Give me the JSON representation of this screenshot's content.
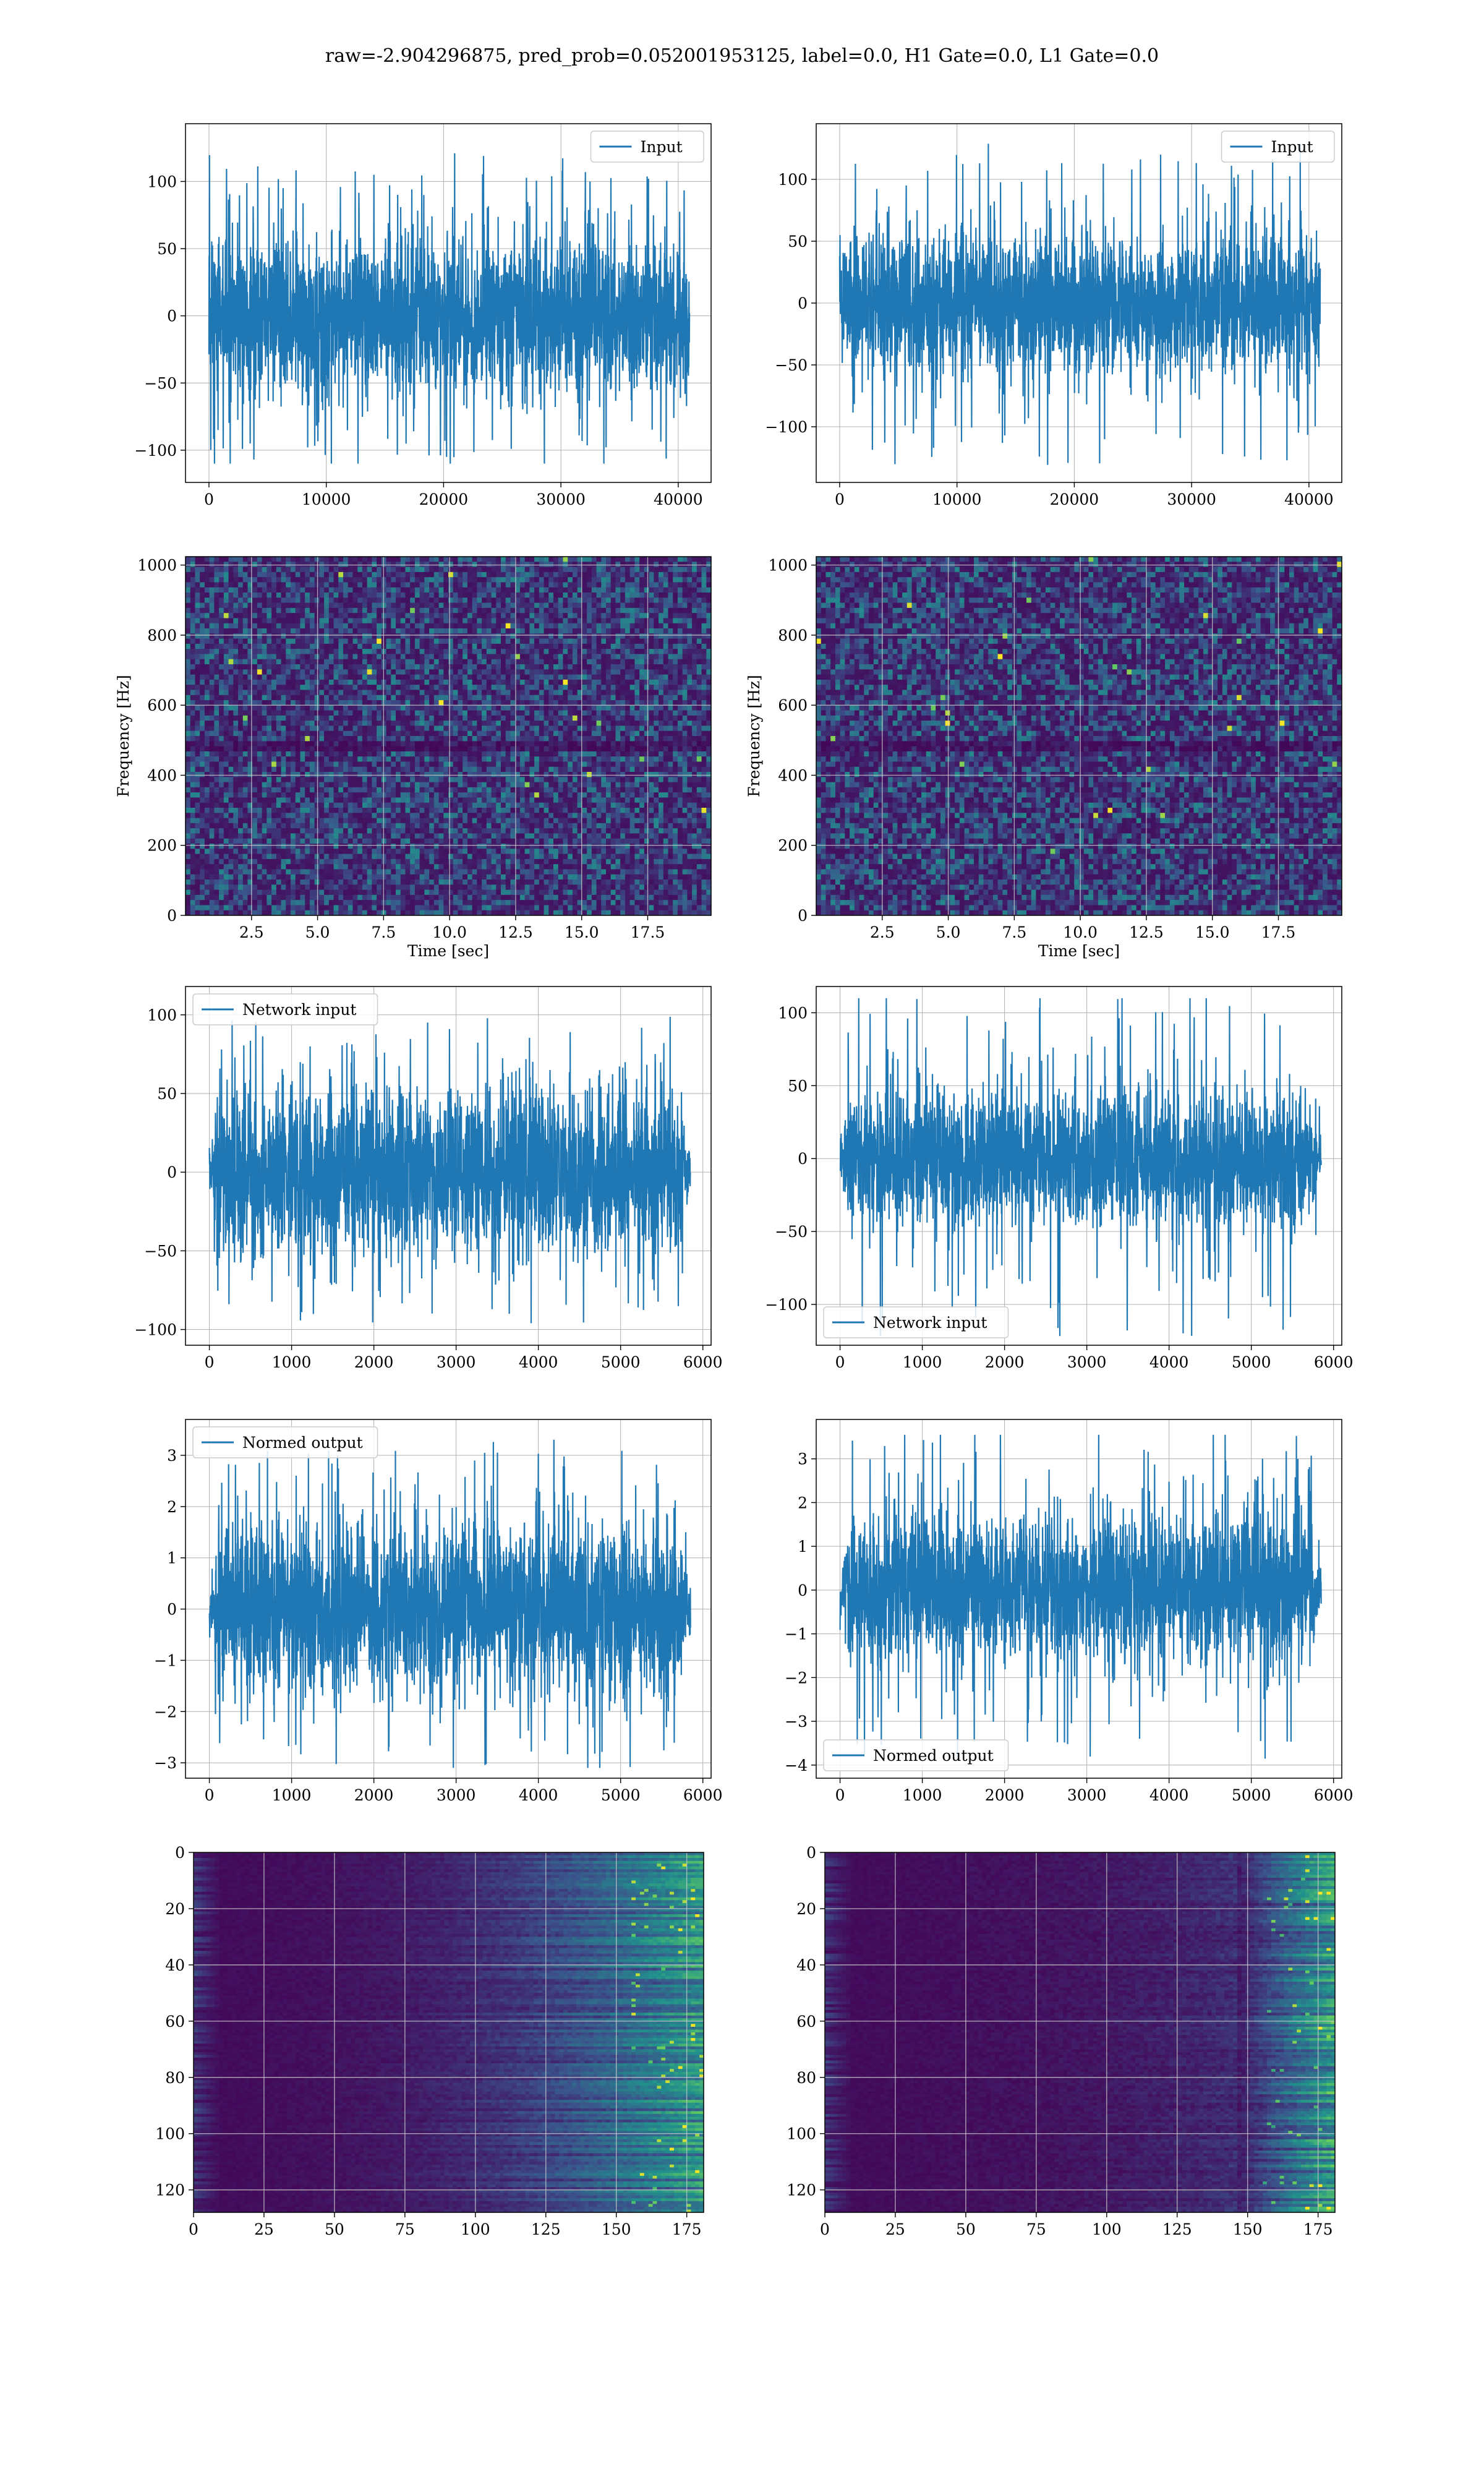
{
  "figure_title": "raw=-2.904296875, pred_prob=0.052001953125, label=0.0, H1 Gate=0.0, L1 Gate=0.0",
  "colors": {
    "series": "#1f77b4",
    "grid": "#b0b0b0",
    "viridis": [
      "#440154",
      "#3b528b",
      "#21918c",
      "#5ec962",
      "#fde725"
    ]
  },
  "chart_data": [
    {
      "id": "h1-input",
      "type": "line",
      "legend": "Input",
      "legend_loc": "upper right",
      "xlim": [
        -2000,
        42800
      ],
      "ylim": [
        -124,
        143
      ],
      "xticks": [
        {
          "v": 0,
          "t": "0"
        },
        {
          "v": 10000,
          "t": "10000"
        },
        {
          "v": 20000,
          "t": "20000"
        },
        {
          "v": 30000,
          "t": "30000"
        },
        {
          "v": 40000,
          "t": "40000"
        }
      ],
      "yticks": [
        {
          "v": -100,
          "t": "−100"
        },
        {
          "v": -50,
          "t": "−50"
        },
        {
          "v": 0,
          "t": "0"
        },
        {
          "v": 50,
          "t": "50"
        },
        {
          "v": 100,
          "t": "100"
        }
      ],
      "x_start": 0,
      "x_end": 40960,
      "amp": 28,
      "peak_max": 122,
      "peak_min": -110,
      "taper": false,
      "grid": true
    },
    {
      "id": "l1-input",
      "type": "line",
      "legend": "Input",
      "legend_loc": "upper right",
      "xlim": [
        -2000,
        42800
      ],
      "ylim": [
        -145,
        145
      ],
      "xticks": [
        {
          "v": 0,
          "t": "0"
        },
        {
          "v": 10000,
          "t": "10000"
        },
        {
          "v": 20000,
          "t": "20000"
        },
        {
          "v": 30000,
          "t": "30000"
        },
        {
          "v": 40000,
          "t": "40000"
        }
      ],
      "yticks": [
        {
          "v": -100,
          "t": "−100"
        },
        {
          "v": -50,
          "t": "−50"
        },
        {
          "v": 0,
          "t": "0"
        },
        {
          "v": 50,
          "t": "50"
        },
        {
          "v": 100,
          "t": "100"
        }
      ],
      "x_start": 0,
      "x_end": 40960,
      "amp": 27,
      "peak_max": 130,
      "peak_min": -132,
      "taper": false,
      "grid": true
    },
    {
      "id": "h1-spectrogram",
      "type": "heatmap",
      "xlabel": "Time [sec]",
      "ylabel": "Frequency [Hz]",
      "xlim": [
        0,
        19.9
      ],
      "ylim": [
        0,
        1024
      ],
      "xticks": [
        {
          "v": 2.5,
          "t": "2.5"
        },
        {
          "v": 5,
          "t": "5.0"
        },
        {
          "v": 7.5,
          "t": "7.5"
        },
        {
          "v": 10,
          "t": "10.0"
        },
        {
          "v": 12.5,
          "t": "12.5"
        },
        {
          "v": 15,
          "t": "15.0"
        },
        {
          "v": 17.5,
          "t": "17.5"
        }
      ],
      "yticks": [
        {
          "v": 0,
          "t": "0"
        },
        {
          "v": 200,
          "t": "200"
        },
        {
          "v": 400,
          "t": "400"
        },
        {
          "v": 600,
          "t": "600"
        },
        {
          "v": 800,
          "t": "800"
        },
        {
          "v": 1000,
          "t": "1000"
        }
      ],
      "grid": true,
      "style": "noise"
    },
    {
      "id": "l1-spectrogram",
      "type": "heatmap",
      "xlabel": "Time [sec]",
      "ylabel": "Frequency [Hz]",
      "xlim": [
        0,
        19.9
      ],
      "ylim": [
        0,
        1024
      ],
      "xticks": [
        {
          "v": 2.5,
          "t": "2.5"
        },
        {
          "v": 5,
          "t": "5.0"
        },
        {
          "v": 7.5,
          "t": "7.5"
        },
        {
          "v": 10,
          "t": "10.0"
        },
        {
          "v": 12.5,
          "t": "12.5"
        },
        {
          "v": 15,
          "t": "15.0"
        },
        {
          "v": 17.5,
          "t": "17.5"
        }
      ],
      "yticks": [
        {
          "v": 0,
          "t": "0"
        },
        {
          "v": 200,
          "t": "200"
        },
        {
          "v": 400,
          "t": "400"
        },
        {
          "v": 600,
          "t": "600"
        },
        {
          "v": 800,
          "t": "800"
        },
        {
          "v": 1000,
          "t": "1000"
        }
      ],
      "grid": true,
      "style": "noise"
    },
    {
      "id": "h1-network-input",
      "type": "line",
      "legend": "Network input",
      "legend_loc": "upper left",
      "xlim": [
        -290,
        6100
      ],
      "ylim": [
        -110,
        118
      ],
      "xticks": [
        {
          "v": 0,
          "t": "0"
        },
        {
          "v": 1000,
          "t": "1000"
        },
        {
          "v": 2000,
          "t": "2000"
        },
        {
          "v": 3000,
          "t": "3000"
        },
        {
          "v": 4000,
          "t": "4000"
        },
        {
          "v": 5000,
          "t": "5000"
        },
        {
          "v": 6000,
          "t": "6000"
        }
      ],
      "yticks": [
        {
          "v": -100,
          "t": "−100"
        },
        {
          "v": -50,
          "t": "−50"
        },
        {
          "v": 0,
          "t": "0"
        },
        {
          "v": 50,
          "t": "50"
        },
        {
          "v": 100,
          "t": "100"
        }
      ],
      "x_start": 0,
      "x_end": 5850,
      "amp": 25,
      "peak_max": 99,
      "peak_min": -96,
      "taper": true,
      "grid": true
    },
    {
      "id": "l1-network-input",
      "type": "line",
      "legend": "Network input",
      "legend_loc": "lower left",
      "xlim": [
        -290,
        6100
      ],
      "ylim": [
        -128,
        118
      ],
      "xticks": [
        {
          "v": 0,
          "t": "0"
        },
        {
          "v": 1000,
          "t": "1000"
        },
        {
          "v": 2000,
          "t": "2000"
        },
        {
          "v": 3000,
          "t": "3000"
        },
        {
          "v": 4000,
          "t": "4000"
        },
        {
          "v": 5000,
          "t": "5000"
        },
        {
          "v": 6000,
          "t": "6000"
        }
      ],
      "yticks": [
        {
          "v": -100,
          "t": "−100"
        },
        {
          "v": -50,
          "t": "−50"
        },
        {
          "v": 0,
          "t": "0"
        },
        {
          "v": 50,
          "t": "50"
        },
        {
          "v": 100,
          "t": "100"
        }
      ],
      "x_start": 0,
      "x_end": 5850,
      "amp": 23,
      "peak_max": 110,
      "peak_min": -122,
      "taper": true,
      "grid": true
    },
    {
      "id": "h1-normed-output",
      "type": "line",
      "legend": "Normed output",
      "legend_loc": "upper left",
      "xlim": [
        -290,
        6100
      ],
      "ylim": [
        -3.3,
        3.7
      ],
      "xticks": [
        {
          "v": 0,
          "t": "0"
        },
        {
          "v": 1000,
          "t": "1000"
        },
        {
          "v": 2000,
          "t": "2000"
        },
        {
          "v": 3000,
          "t": "3000"
        },
        {
          "v": 4000,
          "t": "4000"
        },
        {
          "v": 5000,
          "t": "5000"
        },
        {
          "v": 6000,
          "t": "6000"
        }
      ],
      "yticks": [
        {
          "v": -3,
          "t": "−3"
        },
        {
          "v": -2,
          "t": "−2"
        },
        {
          "v": -1,
          "t": "−1"
        },
        {
          "v": 0,
          "t": "0"
        },
        {
          "v": 1,
          "t": "1"
        },
        {
          "v": 2,
          "t": "2"
        },
        {
          "v": 3,
          "t": "3"
        }
      ],
      "x_start": 0,
      "x_end": 5850,
      "amp": 0.8,
      "peak_max": 3.4,
      "peak_min": -3.1,
      "taper": true,
      "grid": true
    },
    {
      "id": "l1-normed-output",
      "type": "line",
      "legend": "Normed output",
      "legend_loc": "lower left",
      "xlim": [
        -290,
        6100
      ],
      "ylim": [
        -4.3,
        3.9
      ],
      "xticks": [
        {
          "v": 0,
          "t": "0"
        },
        {
          "v": 1000,
          "t": "1000"
        },
        {
          "v": 2000,
          "t": "2000"
        },
        {
          "v": 3000,
          "t": "3000"
        },
        {
          "v": 4000,
          "t": "4000"
        },
        {
          "v": 5000,
          "t": "5000"
        },
        {
          "v": 6000,
          "t": "6000"
        }
      ],
      "yticks": [
        {
          "v": -4,
          "t": "−4"
        },
        {
          "v": -3,
          "t": "−3"
        },
        {
          "v": -2,
          "t": "−2"
        },
        {
          "v": -1,
          "t": "−1"
        },
        {
          "v": 0,
          "t": "0"
        },
        {
          "v": 1,
          "t": "1"
        },
        {
          "v": 2,
          "t": "2"
        },
        {
          "v": 3,
          "t": "3"
        }
      ],
      "x_start": 0,
      "x_end": 5850,
      "amp": 0.78,
      "peak_max": 3.55,
      "peak_min": -3.9,
      "taper": true,
      "grid": true
    },
    {
      "id": "h1-feature-map",
      "type": "heatmap",
      "xlim": [
        0,
        181
      ],
      "ylim": [
        128,
        0
      ],
      "xticks": [
        {
          "v": 0,
          "t": "0"
        },
        {
          "v": 25,
          "t": "25"
        },
        {
          "v": 50,
          "t": "50"
        },
        {
          "v": 75,
          "t": "75"
        },
        {
          "v": 100,
          "t": "100"
        },
        {
          "v": 125,
          "t": "125"
        },
        {
          "v": 150,
          "t": "150"
        },
        {
          "v": 175,
          "t": "175"
        }
      ],
      "yticks": [
        {
          "v": 0,
          "t": "0"
        },
        {
          "v": 20,
          "t": "20"
        },
        {
          "v": 40,
          "t": "40"
        },
        {
          "v": 60,
          "t": "60"
        },
        {
          "v": 80,
          "t": "80"
        },
        {
          "v": 100,
          "t": "100"
        },
        {
          "v": 120,
          "t": "120"
        }
      ],
      "grid": true,
      "style": "feature-h1"
    },
    {
      "id": "l1-feature-map",
      "type": "heatmap",
      "xlim": [
        0,
        181
      ],
      "ylim": [
        128,
        0
      ],
      "xticks": [
        {
          "v": 0,
          "t": "0"
        },
        {
          "v": 25,
          "t": "25"
        },
        {
          "v": 50,
          "t": "50"
        },
        {
          "v": 75,
          "t": "75"
        },
        {
          "v": 100,
          "t": "100"
        },
        {
          "v": 125,
          "t": "125"
        },
        {
          "v": 150,
          "t": "150"
        },
        {
          "v": 175,
          "t": "175"
        }
      ],
      "yticks": [
        {
          "v": 0,
          "t": "0"
        },
        {
          "v": 20,
          "t": "20"
        },
        {
          "v": 40,
          "t": "40"
        },
        {
          "v": 60,
          "t": "60"
        },
        {
          "v": 80,
          "t": "80"
        },
        {
          "v": 100,
          "t": "100"
        },
        {
          "v": 120,
          "t": "120"
        }
      ],
      "grid": true,
      "style": "feature-l1"
    }
  ]
}
